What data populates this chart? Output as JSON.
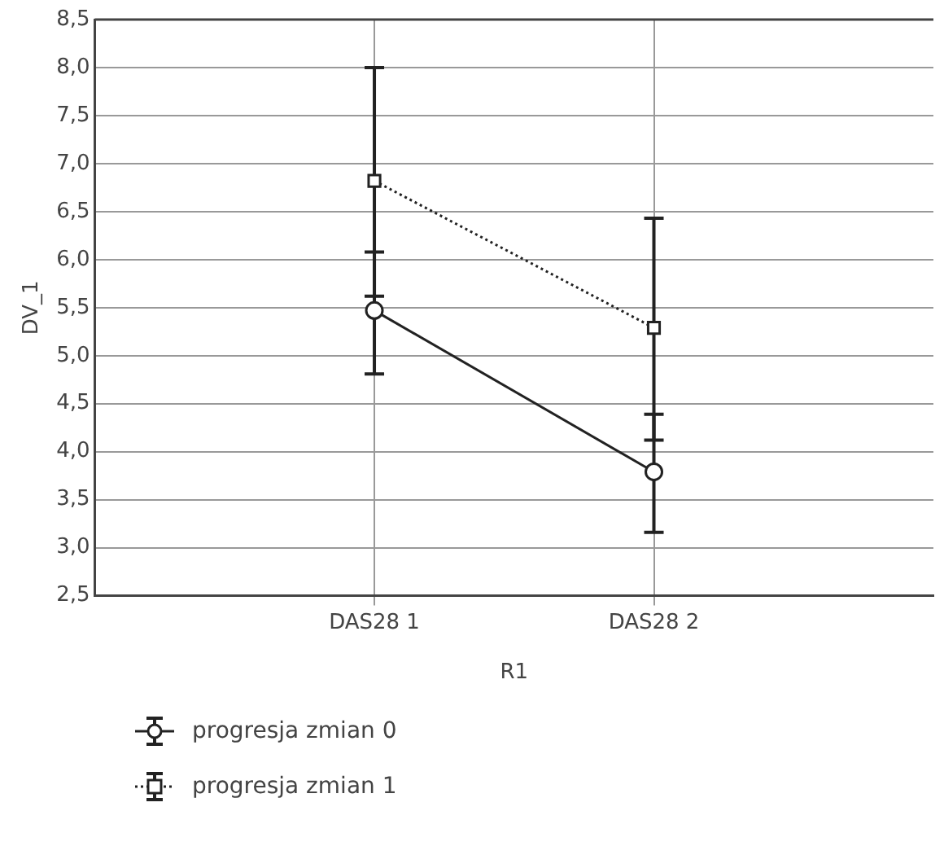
{
  "chart_data": {
    "type": "line",
    "xlabel": "R1",
    "ylabel": "DV_1",
    "categories": [
      "DAS28 1",
      "DAS28 2"
    ],
    "ylim": [
      2.5,
      8.5
    ],
    "yticks": [
      {
        "value": 2.5,
        "label": "2,5"
      },
      {
        "value": 3,
        "label": "3,0"
      },
      {
        "value": 3.5,
        "label": "3,5"
      },
      {
        "value": 4,
        "label": "4,0"
      },
      {
        "value": 4.5,
        "label": "4,5"
      },
      {
        "value": 5,
        "label": "5,0"
      },
      {
        "value": 5.5,
        "label": "5,5"
      },
      {
        "value": 6,
        "label": "6,0"
      },
      {
        "value": 6.5,
        "label": "6,5"
      },
      {
        "value": 7,
        "label": "7,0"
      },
      {
        "value": 7.5,
        "label": "7,5"
      },
      {
        "value": 8,
        "label": "8,0"
      },
      {
        "value": 8.5,
        "label": "8,5"
      }
    ],
    "grid": true,
    "legend": "bottom left",
    "series": [
      {
        "name": "progresja zmian 0",
        "color": "#222222",
        "marker": "circle",
        "line_style": "solid",
        "values": [
          5.47,
          3.79
        ],
        "errors": [
          [
            4.81,
            6.08
          ],
          [
            3.16,
            4.39
          ]
        ]
      },
      {
        "name": "progresja zmian 1",
        "color": "#222222",
        "marker": "square",
        "line_style": "dotted",
        "values": [
          6.82,
          5.29
        ],
        "errors": [
          [
            5.62,
            8.0
          ],
          [
            4.12,
            6.43
          ]
        ]
      }
    ]
  }
}
